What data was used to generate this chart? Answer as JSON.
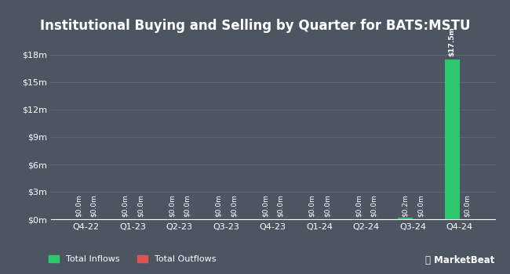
{
  "title": "Institutional Buying and Selling by Quarter for BATS:MSTU",
  "categories": [
    "Q4-22",
    "Q1-23",
    "Q2-23",
    "Q3-23",
    "Q4-23",
    "Q1-24",
    "Q2-24",
    "Q3-24",
    "Q4-24"
  ],
  "inflows": [
    0.0,
    0.0,
    0.0,
    0.0,
    0.0,
    0.0,
    0.0,
    0.2,
    17.5
  ],
  "outflows": [
    0.0,
    0.0,
    0.0,
    0.0,
    0.0,
    0.0,
    0.0,
    0.0,
    0.0
  ],
  "inflow_labels": [
    "$0.0m",
    "$0.0m",
    "$0.0m",
    "$0.0m",
    "$0.0m",
    "$0.0m",
    "$0.0m",
    "$0.2m",
    "$17.5m"
  ],
  "outflow_labels": [
    "$0.0m",
    "$0.0m",
    "$0.0m",
    "$0.0m",
    "$0.0m",
    "$0.0m",
    "$0.0m",
    "$0.0m",
    "$0.0m"
  ],
  "inflow_color": "#2dc76d",
  "outflow_color": "#e05252",
  "bg_color": "#4d5563",
  "plot_bg_color": "#4d5563",
  "text_color": "#ffffff",
  "grid_color": "#606672",
  "ylim": [
    0,
    19.5
  ],
  "yticks": [
    0,
    3,
    6,
    9,
    12,
    15,
    18
  ],
  "ytick_labels": [
    "$0m",
    "$3m",
    "$6m",
    "$9m",
    "$12m",
    "$15m",
    "$18m"
  ],
  "title_fontsize": 12,
  "tick_fontsize": 8,
  "label_fontsize": 6.5,
  "bar_width": 0.32,
  "legend_inflow": "Total Inflows",
  "legend_outflow": "Total Outflows"
}
